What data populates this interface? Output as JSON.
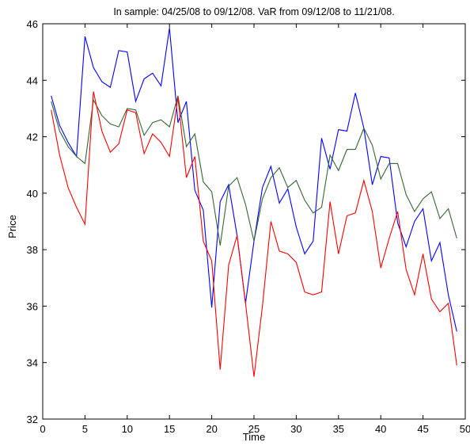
{
  "chart_data": {
    "type": "line",
    "title": "In sample: 04/25/08 to 09/12/08. VaR from 09/12/08 to 11/21/08.",
    "xlabel": "Time",
    "ylabel": "Price",
    "xlim": [
      0,
      50
    ],
    "ylim": [
      32,
      46
    ],
    "xticks": [
      0,
      5,
      10,
      15,
      20,
      25,
      30,
      35,
      40,
      45,
      50
    ],
    "yticks": [
      32,
      34,
      36,
      38,
      40,
      42,
      44,
      46
    ],
    "grid": false,
    "legend": "none",
    "x": [
      1,
      2,
      3,
      4,
      5,
      6,
      7,
      8,
      9,
      10,
      11,
      12,
      13,
      14,
      15,
      16,
      17,
      18,
      19,
      20,
      21,
      22,
      23,
      24,
      25,
      26,
      27,
      28,
      29,
      30,
      31,
      32,
      33,
      34,
      35,
      36,
      37,
      38,
      39,
      40,
      41,
      42,
      43,
      44,
      45,
      46,
      47,
      48,
      49
    ],
    "series": [
      {
        "color": "#0000ff",
        "values": [
          43.45,
          42.4,
          41.8,
          41.3,
          45.55,
          44.45,
          43.95,
          43.75,
          45.05,
          45.0,
          43.25,
          44.05,
          44.25,
          43.8,
          45.85,
          42.5,
          43.25,
          40.1,
          39.4,
          35.95,
          39.7,
          40.3,
          38.5,
          36.1,
          38.3,
          40.2,
          40.95,
          39.65,
          40.15,
          38.8,
          37.85,
          38.3,
          41.95,
          40.85,
          42.25,
          42.2,
          43.55,
          42.3,
          40.3,
          41.3,
          41.25,
          38.95,
          38.1,
          39.0,
          39.45,
          37.6,
          38.25,
          36.4,
          35.1
        ]
      },
      {
        "color": "#336633",
        "values": [
          43.25,
          42.2,
          41.65,
          41.3,
          41.05,
          43.3,
          42.75,
          42.45,
          42.35,
          43.0,
          42.95,
          42.05,
          42.5,
          42.6,
          42.35,
          43.45,
          41.65,
          42.1,
          40.4,
          40.05,
          38.15,
          40.25,
          40.55,
          39.6,
          38.3,
          39.8,
          40.55,
          40.9,
          40.2,
          40.45,
          39.75,
          39.3,
          39.5,
          41.35,
          40.8,
          41.55,
          41.55,
          42.3,
          41.7,
          40.5,
          41.05,
          41.05,
          39.95,
          39.35,
          39.8,
          40.05,
          39.1,
          39.45,
          38.4
        ]
      },
      {
        "color": "#ff0000",
        "values": [
          42.95,
          41.35,
          40.2,
          39.5,
          38.9,
          43.6,
          42.2,
          41.45,
          41.75,
          42.95,
          42.85,
          41.4,
          42.1,
          41.8,
          41.3,
          43.4,
          40.55,
          41.3,
          38.3,
          37.6,
          33.75,
          37.45,
          38.5,
          36.1,
          33.5,
          36.0,
          39.0,
          37.95,
          37.85,
          37.55,
          36.5,
          36.4,
          36.5,
          39.7,
          37.85,
          39.2,
          39.3,
          40.45,
          39.35,
          37.35,
          38.4,
          39.35,
          37.3,
          36.4,
          37.85,
          36.25,
          35.8,
          36.1,
          33.9
        ]
      }
    ]
  }
}
